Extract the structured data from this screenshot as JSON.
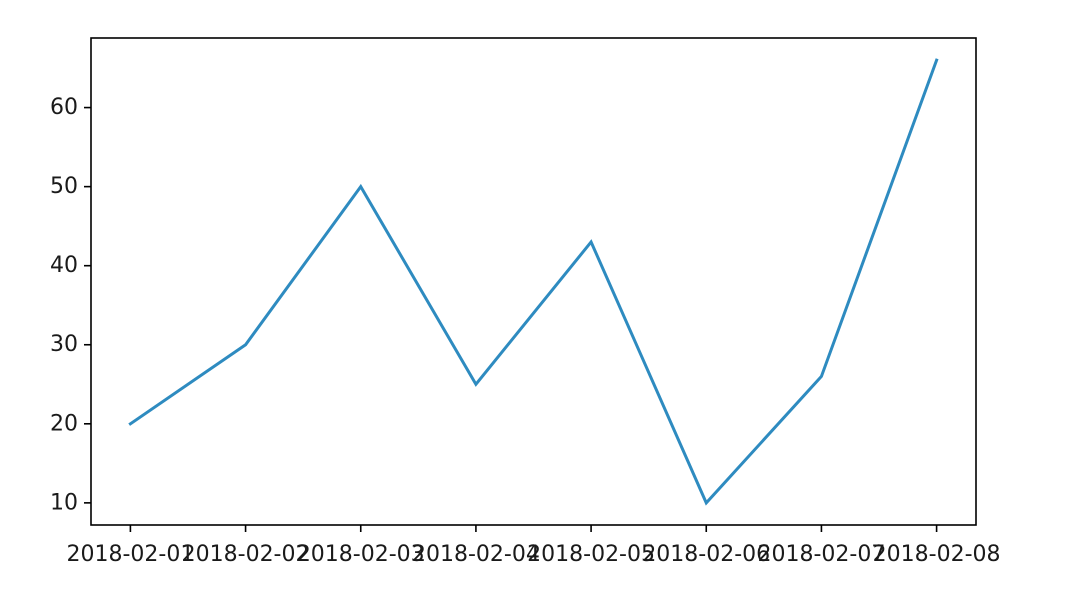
{
  "chart_data": {
    "type": "line",
    "title": "",
    "xlabel": "",
    "ylabel": "",
    "x": [
      "2018-02-01",
      "2018-02-02",
      "2018-02-03",
      "2018-02-04",
      "2018-02-05",
      "2018-02-06",
      "2018-02-07",
      "2018-02-08"
    ],
    "series": [
      {
        "values": [
          20,
          30,
          50,
          25,
          43,
          10,
          26,
          66
        ],
        "color": "#2e8bc0"
      }
    ],
    "ylim": [
      7.2,
      68.8
    ],
    "yticks": [
      10,
      20,
      30,
      40,
      50,
      60
    ],
    "grid": false,
    "legend": "none"
  }
}
